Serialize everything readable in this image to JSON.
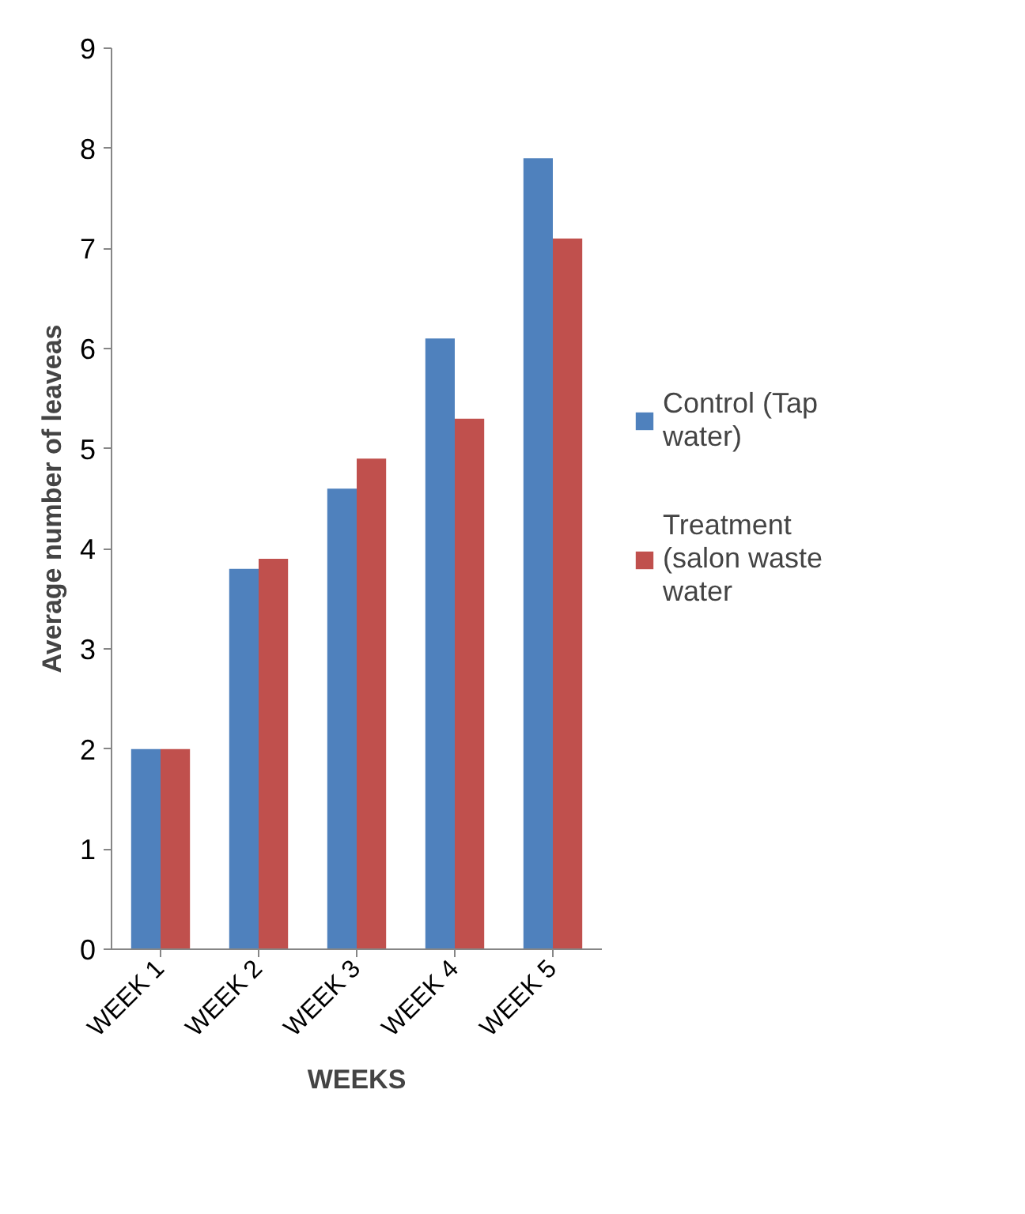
{
  "chart_data": {
    "type": "bar",
    "xlabel": "WEEKS",
    "ylabel": "Average number of leaveas",
    "categories": [
      "WEEK 1",
      "WEEK 2",
      "WEEK 3",
      "WEEK 4",
      "WEEK 5"
    ],
    "series": [
      {
        "name": "Control (Tap water)",
        "color": "#4f81bd",
        "values": [
          2,
          3.8,
          4.6,
          6.1,
          7.9
        ]
      },
      {
        "name": "Treatment (salon waste water",
        "color": "#c0504d",
        "values": [
          2,
          3.9,
          4.9,
          5.3,
          7.1
        ]
      }
    ],
    "ylim": [
      0,
      9
    ],
    "yticks": [
      0,
      1,
      2,
      3,
      4,
      5,
      6,
      7,
      8,
      9
    ],
    "grid": false,
    "legend": "right"
  }
}
